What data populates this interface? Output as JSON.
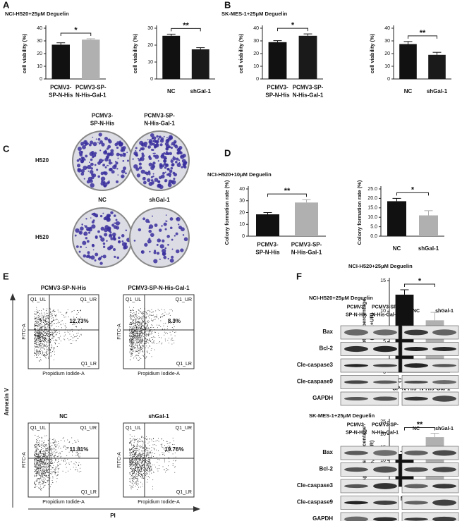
{
  "panel_labels": [
    "A",
    "B",
    "C",
    "D",
    "E",
    "F"
  ],
  "chart_data": [
    {
      "type": "bar",
      "title": "NCI-H520+25μM Deguelin",
      "ylabel": "cell viability (%)",
      "categories": [
        "PCMV3-\nSP-N-His",
        "PCMV3-SP-\nN-His-Gal-1"
      ],
      "values": [
        27,
        31
      ],
      "errors": [
        1.5,
        0.7
      ],
      "colors": [
        "#111111",
        "#b0b0b0"
      ],
      "ylim": [
        0,
        40
      ],
      "yticks": [
        0,
        10,
        20,
        30,
        40
      ],
      "significance": "*"
    },
    {
      "type": "bar",
      "ylabel": "cell viability (%)",
      "categories": [
        "NC",
        "shGal-1"
      ],
      "values": [
        25.5,
        17.5
      ],
      "errors": [
        1,
        1
      ],
      "colors": [
        "#111111",
        "#1a1a1a"
      ],
      "ylim": [
        0,
        30
      ],
      "yticks": [
        0,
        10,
        20,
        30
      ],
      "significance": "**"
    },
    {
      "type": "bar",
      "title": "SK-MES-1+25μM Deguelin",
      "ylabel": "cell viability (%)",
      "categories": [
        "PCMV3-\nSP-N-His",
        "PCMV3-SP-\nN-His-Gal-1"
      ],
      "values": [
        29,
        34
      ],
      "errors": [
        1.2,
        1.5
      ],
      "colors": [
        "#111111",
        "#1a1a1a"
      ],
      "ylim": [
        0,
        40
      ],
      "yticks": [
        0,
        10,
        20,
        30,
        40
      ],
      "significance": "*"
    },
    {
      "type": "bar",
      "ylabel": "cell viability (%)",
      "categories": [
        "NC",
        "shGal-1"
      ],
      "values": [
        27.5,
        19
      ],
      "errors": [
        2,
        2
      ],
      "colors": [
        "#111111",
        "#1a1a1a"
      ],
      "ylim": [
        0,
        40
      ],
      "yticks": [
        0,
        10,
        20,
        30,
        40
      ],
      "significance": "**"
    },
    {
      "type": "bar",
      "title": "NCI-H520+10μM Deguelin",
      "ylabel": "Colony  formation rate (%)",
      "categories": [
        "PCMV3-\nSP-N-His",
        "PCMV3-SP-\nN-His-Gal-1"
      ],
      "values": [
        18.5,
        28.5
      ],
      "errors": [
        1.5,
        2.5
      ],
      "colors": [
        "#111111",
        "#b0b0b0"
      ],
      "ylim": [
        0,
        40
      ],
      "yticks": [
        0,
        10,
        20,
        30,
        40
      ],
      "significance": "**"
    },
    {
      "type": "bar",
      "ylabel": "Colony  formation rate (%)",
      "categories": [
        "NC",
        "shGal-1"
      ],
      "values": [
        18.5,
        11
      ],
      "errors": [
        1.5,
        2.5
      ],
      "colors": [
        "#111111",
        "#b0b0b0"
      ],
      "ylim": [
        0,
        25
      ],
      "yticks": [
        {
          "value": 0,
          "label": "0.0"
        },
        {
          "value": 5,
          "label": "5.0"
        },
        {
          "value": 10,
          "label": "10.0"
        },
        {
          "value": 15,
          "label": "15.0"
        },
        {
          "value": 20,
          "label": "20.0"
        },
        {
          "value": 25,
          "label": "25.0"
        }
      ],
      "significance": "*"
    },
    {
      "type": "bar",
      "title": "NCI-H520+25μM Deguelin",
      "ylabel": "Apoptosis percentage\n(%,UL+UR)",
      "categories": [
        "PCMV3-\nSP-N-His",
        "PCMV3-SP-\nN-His-Gal-1"
      ],
      "values": [
        12.7,
        8.5
      ],
      "errors": [
        0.8,
        1.3
      ],
      "colors": [
        "#111111",
        "#b0b0b0"
      ],
      "ylim": [
        0,
        15
      ],
      "yticks": [
        0,
        5,
        10,
        15
      ],
      "significance": "*"
    },
    {
      "type": "bar",
      "ylabel": "Apoptosis percentage\n(%,UL+UR)",
      "categories": [
        "NC",
        "shGal-1"
      ],
      "values": [
        12.5,
        19
      ],
      "errors": [
        1,
        1.5
      ],
      "colors": [
        "#111111",
        "#b0b0b0"
      ],
      "ylim": [
        0,
        25
      ],
      "yticks": [
        0,
        5,
        10,
        15,
        20,
        25
      ],
      "significance": "**"
    }
  ],
  "panel_c": {
    "columns": [
      "PCMV3-\nSP-N-His",
      "PCMV3-SP-\nN-His-Gal-1"
    ],
    "lower_columns": [
      "NC",
      "shGal-1"
    ],
    "rows": [
      "H520",
      "H520"
    ]
  },
  "panel_e": {
    "plots": [
      {
        "title": "PCMV3-SP-N-His",
        "percent": "12.73%"
      },
      {
        "title": "PCMV3-SP-N-His-Gal-1",
        "percent": "8.3%"
      },
      {
        "title": "NC",
        "percent": "11.81%"
      },
      {
        "title": "shGal-1",
        "percent": "19.76%"
      }
    ],
    "quadrant_labels": [
      "Q1_UL",
      "Q1_UR",
      "Q1_LR"
    ],
    "x_axis": "Propidium Iodide-A",
    "y_axis": "FITC-A",
    "outer_y": "Annexin V",
    "outer_x": "PI"
  },
  "panel_f": {
    "blots": [
      {
        "title": "NCI-H520+25μM Deguelin",
        "columns": [
          "PCMV3-\nSP-N-His",
          "PCMV3-SP-\nN-His-Gal-1",
          "NC",
          "shGal-1"
        ],
        "rows": [
          "Bax",
          "Bcl-2",
          "Cle-caspase3",
          "Cle-caspase9",
          "GAPDH"
        ]
      },
      {
        "title": "SK-MES-1+25μM Deguelin",
        "columns": [
          "PCMV3-\nSP-N-His",
          "PCMV3-SP-\nN-His-Gal-1",
          "NC",
          "shGal-1"
        ],
        "rows": [
          "Bax",
          "Bcl-2",
          "Cle-caspase3",
          "Cle-caspase9",
          "GAPDH"
        ]
      }
    ]
  }
}
